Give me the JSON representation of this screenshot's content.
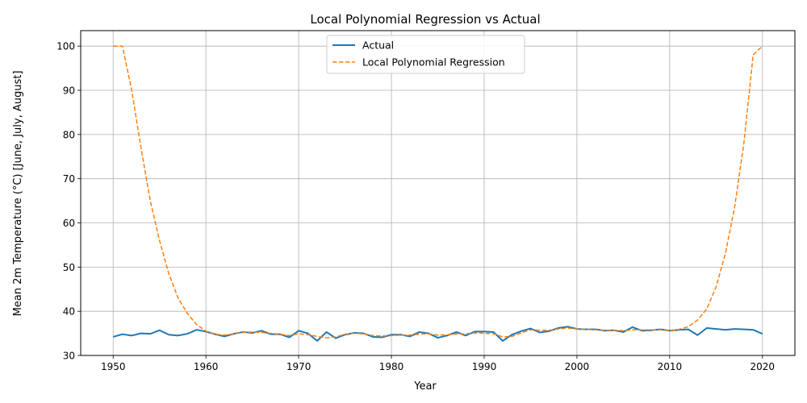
{
  "chart_data": {
    "type": "line",
    "title": "Local Polynomial Regression vs Actual",
    "xlabel": "Year",
    "ylabel": "Mean 2m Temperature (°C) [June, July, August]",
    "xlim": [
      1946.5,
      2023.5
    ],
    "ylim": [
      30,
      103.5
    ],
    "xticks": [
      1950,
      1960,
      1970,
      1980,
      1990,
      2000,
      2010,
      2020
    ],
    "yticks": [
      30,
      40,
      50,
      60,
      70,
      80,
      90,
      100
    ],
    "grid": true,
    "legend_position": "top-center",
    "x": [
      1950,
      1951,
      1952,
      1953,
      1954,
      1955,
      1956,
      1957,
      1958,
      1959,
      1960,
      1961,
      1962,
      1963,
      1964,
      1965,
      1966,
      1967,
      1968,
      1969,
      1970,
      1971,
      1972,
      1973,
      1974,
      1975,
      1976,
      1977,
      1978,
      1979,
      1980,
      1981,
      1982,
      1983,
      1984,
      1985,
      1986,
      1987,
      1988,
      1989,
      1990,
      1991,
      1992,
      1993,
      1994,
      1995,
      1996,
      1997,
      1998,
      1999,
      2000,
      2001,
      2002,
      2003,
      2004,
      2005,
      2006,
      2007,
      2008,
      2009,
      2010,
      2011,
      2012,
      2013,
      2014,
      2015,
      2016,
      2017,
      2018,
      2019,
      2020
    ],
    "series": [
      {
        "name": "Actual",
        "color": "#1f77b4",
        "dash": "solid",
        "values": [
          34.2,
          34.8,
          34.5,
          35.0,
          34.9,
          35.7,
          34.7,
          34.5,
          34.9,
          35.8,
          35.4,
          34.8,
          34.3,
          34.9,
          35.3,
          35.1,
          35.6,
          34.8,
          34.8,
          34.1,
          35.6,
          35.0,
          33.3,
          35.3,
          33.9,
          34.7,
          35.1,
          35.0,
          34.2,
          34.1,
          34.7,
          34.7,
          34.3,
          35.3,
          35.0,
          34.0,
          34.5,
          35.3,
          34.5,
          35.4,
          35.4,
          35.3,
          33.3,
          34.7,
          35.5,
          36.1,
          35.2,
          35.5,
          36.2,
          36.5,
          36.0,
          35.9,
          35.9,
          35.6,
          35.7,
          35.3,
          36.4,
          35.6,
          35.7,
          35.9,
          35.6,
          35.8,
          35.9,
          34.6,
          36.2,
          36.0,
          35.8,
          36.0,
          35.9,
          35.8,
          34.9
        ]
      },
      {
        "name": "Local Polynomial Regression",
        "color": "#ff7f0e",
        "dash": "dashed",
        "values": [
          100.0,
          100.0,
          90.0,
          77.0,
          65.0,
          56.0,
          48.5,
          43.0,
          39.5,
          37.0,
          35.5,
          34.8,
          34.6,
          34.9,
          35.2,
          35.3,
          35.2,
          35.0,
          34.8,
          34.5,
          34.9,
          34.7,
          34.3,
          34.0,
          34.2,
          34.8,
          35.0,
          34.9,
          34.5,
          34.4,
          34.5,
          34.6,
          34.6,
          34.8,
          34.9,
          34.6,
          34.7,
          34.8,
          34.9,
          35.1,
          35.0,
          34.9,
          34.2,
          34.3,
          35.1,
          35.8,
          35.7,
          35.7,
          36.0,
          36.2,
          36.0,
          35.9,
          35.8,
          35.7,
          35.7,
          35.6,
          35.8,
          35.8,
          35.8,
          35.8,
          35.6,
          35.9,
          36.5,
          38.0,
          40.5,
          45.5,
          53.0,
          63.5,
          78.0,
          98.0,
          100.0
        ]
      }
    ]
  }
}
